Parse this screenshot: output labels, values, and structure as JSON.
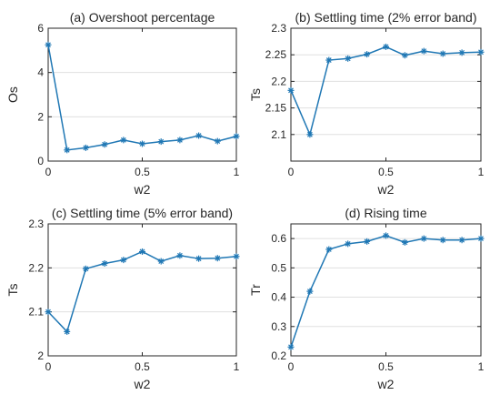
{
  "colors": {
    "series": "#1f77b4"
  },
  "marker_icon": "asterisk-marker-icon",
  "chart_data": [
    {
      "type": "line",
      "title": "(a) Overshoot percentage",
      "xlabel": "w2",
      "ylabel": "Os",
      "xlim": [
        0,
        1
      ],
      "ylim": [
        0,
        6
      ],
      "x_ticks": [
        0,
        0.5,
        1
      ],
      "x_tick_labels": [
        "0",
        "0.5",
        "1"
      ],
      "y_ticks": [
        0,
        2,
        4,
        6
      ],
      "y_tick_labels": [
        "0",
        "2",
        "4",
        "6"
      ],
      "grid": "horizontal",
      "x": [
        0,
        0.1,
        0.2,
        0.3,
        0.4,
        0.5,
        0.6,
        0.7,
        0.8,
        0.9,
        1.0
      ],
      "series": [
        {
          "values": [
            5.25,
            0.5,
            0.6,
            0.75,
            0.95,
            0.78,
            0.88,
            0.95,
            1.15,
            0.9,
            1.12
          ]
        }
      ]
    },
    {
      "type": "line",
      "title": "(b) Settling time (2% error band)",
      "xlabel": "w2",
      "ylabel": "Ts",
      "xlim": [
        0,
        1
      ],
      "ylim": [
        2.05,
        2.3
      ],
      "x_ticks": [
        0,
        0.5,
        1
      ],
      "x_tick_labels": [
        "0",
        "0.5",
        "1"
      ],
      "y_ticks": [
        2.1,
        2.15,
        2.2,
        2.25,
        2.3
      ],
      "y_tick_labels": [
        "2.1",
        "2.15",
        "2.2",
        "2.25",
        "2.3"
      ],
      "grid": "horizontal",
      "x": [
        0,
        0.1,
        0.2,
        0.3,
        0.4,
        0.5,
        0.6,
        0.7,
        0.8,
        0.9,
        1.0
      ],
      "series": [
        {
          "values": [
            2.183,
            2.1,
            2.24,
            2.243,
            2.251,
            2.265,
            2.249,
            2.257,
            2.252,
            2.254,
            2.255
          ]
        }
      ]
    },
    {
      "type": "line",
      "title": "(c) Settling time (5% error band)",
      "xlabel": "w2",
      "ylabel": "Ts",
      "xlim": [
        0,
        1
      ],
      "ylim": [
        2,
        2.3
      ],
      "x_ticks": [
        0,
        0.5,
        1
      ],
      "x_tick_labels": [
        "0",
        "0.5",
        "1"
      ],
      "y_ticks": [
        2,
        2.1,
        2.2,
        2.3
      ],
      "y_tick_labels": [
        "2",
        "2.1",
        "2.2",
        "2.3"
      ],
      "grid": "horizontal",
      "x": [
        0,
        0.1,
        0.2,
        0.3,
        0.4,
        0.5,
        0.6,
        0.7,
        0.8,
        0.9,
        1.0
      ],
      "series": [
        {
          "values": [
            2.1,
            2.055,
            2.198,
            2.21,
            2.218,
            2.237,
            2.215,
            2.228,
            2.221,
            2.222,
            2.226
          ]
        }
      ]
    },
    {
      "type": "line",
      "title": "(d) Rising time",
      "xlabel": "w2",
      "ylabel": "Tr",
      "xlim": [
        0,
        1
      ],
      "ylim": [
        0.2,
        0.65
      ],
      "x_ticks": [
        0,
        0.5,
        1
      ],
      "x_tick_labels": [
        "0",
        "0.5",
        "1"
      ],
      "y_ticks": [
        0.2,
        0.3,
        0.4,
        0.5,
        0.6
      ],
      "y_tick_labels": [
        "0.2",
        "0.3",
        "0.4",
        "0.5",
        "0.6"
      ],
      "grid": "horizontal",
      "x": [
        0,
        0.1,
        0.2,
        0.3,
        0.4,
        0.5,
        0.6,
        0.7,
        0.8,
        0.9,
        1.0
      ],
      "series": [
        {
          "values": [
            0.23,
            0.42,
            0.563,
            0.582,
            0.59,
            0.61,
            0.587,
            0.6,
            0.595,
            0.595,
            0.6
          ]
        }
      ]
    }
  ]
}
